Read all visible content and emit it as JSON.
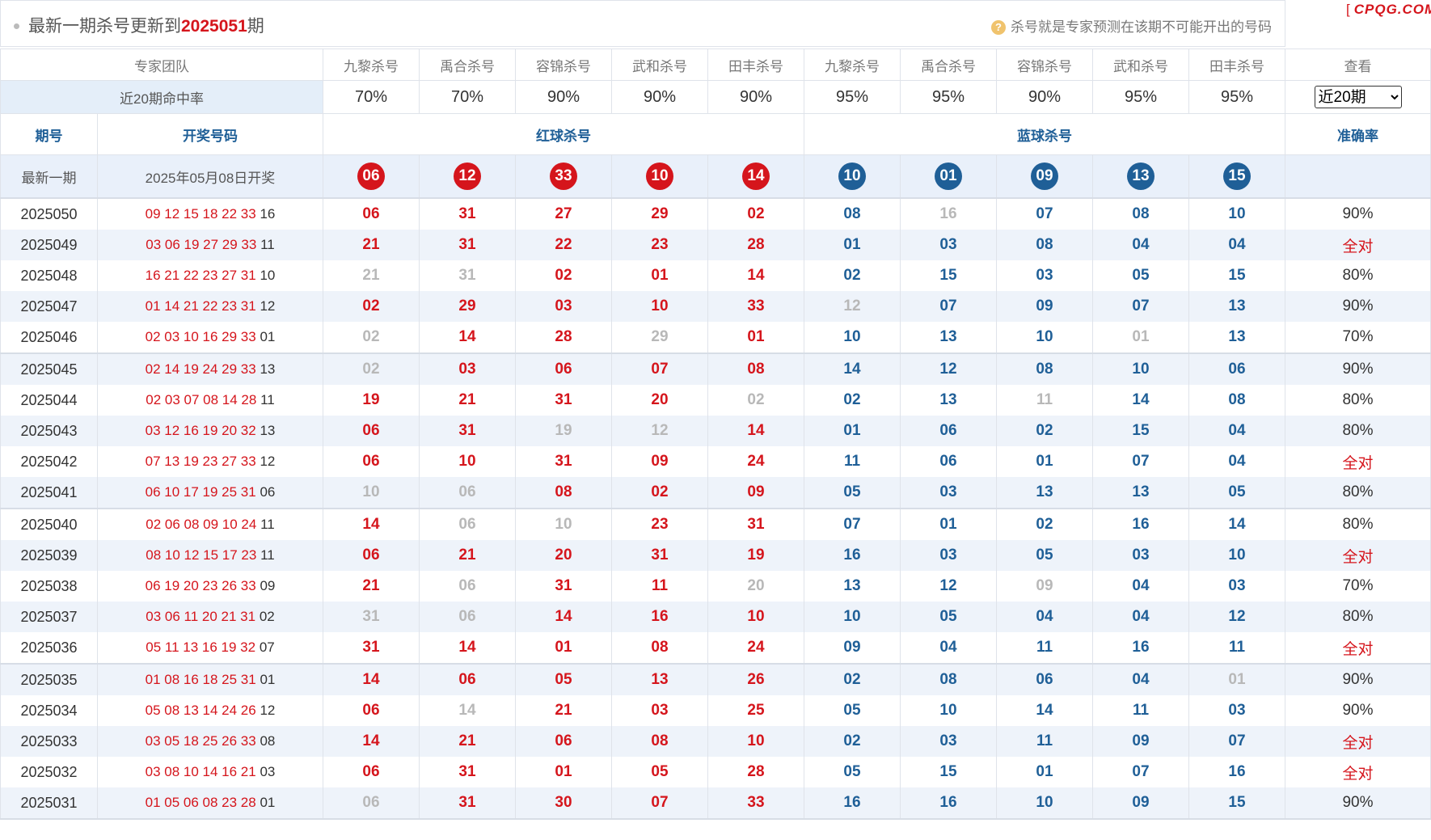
{
  "header": {
    "title_prefix": "最新一期杀号更新到",
    "title_period": "2025051",
    "title_suffix": "期",
    "tip_icon": "question-icon",
    "tip": "杀号就是专家预测在该期不可能开出的号码",
    "logo": "CPQG.COM"
  },
  "team_row": {
    "label": "专家团队",
    "experts": [
      "九黎杀号",
      "禹合杀号",
      "容锦杀号",
      "武和杀号",
      "田丰杀号",
      "九黎杀号",
      "禹合杀号",
      "容锦杀号",
      "武和杀号",
      "田丰杀号"
    ],
    "view_label": "查看"
  },
  "rate_row": {
    "label": "近20期命中率",
    "rates": [
      "70%",
      "70%",
      "90%",
      "90%",
      "90%",
      "95%",
      "95%",
      "90%",
      "95%",
      "95%"
    ],
    "select_value": "近20期"
  },
  "columns": {
    "period": "期号",
    "draw": "开奖号码",
    "red": "红球杀号",
    "blue": "蓝球杀号",
    "accuracy": "准确率"
  },
  "latest": {
    "label": "最新一期",
    "date": "2025年05月08日开奖",
    "red": [
      "06",
      "12",
      "33",
      "10",
      "14"
    ],
    "blue": [
      "10",
      "01",
      "09",
      "13",
      "15"
    ]
  },
  "rows": [
    {
      "period": "2025050",
      "draw_red": "09 12 15 18 22 33",
      "draw_blue": "16",
      "kills": [
        "06",
        "31",
        "27",
        "29",
        "02",
        "08",
        "16",
        "07",
        "08",
        "10"
      ],
      "miss": [
        6
      ],
      "accuracy": "90%"
    },
    {
      "period": "2025049",
      "draw_red": "03 06 19 27 29 33",
      "draw_blue": "11",
      "kills": [
        "21",
        "31",
        "22",
        "23",
        "28",
        "01",
        "03",
        "08",
        "04",
        "04"
      ],
      "miss": [],
      "accuracy": "全对"
    },
    {
      "period": "2025048",
      "draw_red": "16 21 22 23 27 31",
      "draw_blue": "10",
      "kills": [
        "21",
        "31",
        "02",
        "01",
        "14",
        "02",
        "15",
        "03",
        "05",
        "15"
      ],
      "miss": [
        0,
        1
      ],
      "accuracy": "80%"
    },
    {
      "period": "2025047",
      "draw_red": "01 14 21 22 23 31",
      "draw_blue": "12",
      "kills": [
        "02",
        "29",
        "03",
        "10",
        "33",
        "12",
        "07",
        "09",
        "07",
        "13"
      ],
      "miss": [
        5
      ],
      "accuracy": "90%"
    },
    {
      "period": "2025046",
      "draw_red": "02 03 10 16 29 33",
      "draw_blue": "01",
      "kills": [
        "02",
        "14",
        "28",
        "29",
        "01",
        "10",
        "13",
        "10",
        "01",
        "13"
      ],
      "miss": [
        0,
        3,
        8
      ],
      "accuracy": "70%"
    },
    {
      "period": "2025045",
      "draw_red": "02 14 19 24 29 33",
      "draw_blue": "13",
      "kills": [
        "02",
        "03",
        "06",
        "07",
        "08",
        "14",
        "12",
        "08",
        "10",
        "06"
      ],
      "miss": [
        0
      ],
      "accuracy": "90%"
    },
    {
      "period": "2025044",
      "draw_red": "02 03 07 08 14 28",
      "draw_blue": "11",
      "kills": [
        "19",
        "21",
        "31",
        "20",
        "02",
        "02",
        "13",
        "11",
        "14",
        "08"
      ],
      "miss": [
        4,
        7
      ],
      "accuracy": "80%"
    },
    {
      "period": "2025043",
      "draw_red": "03 12 16 19 20 32",
      "draw_blue": "13",
      "kills": [
        "06",
        "31",
        "19",
        "12",
        "14",
        "01",
        "06",
        "02",
        "15",
        "04"
      ],
      "miss": [
        2,
        3
      ],
      "accuracy": "80%"
    },
    {
      "period": "2025042",
      "draw_red": "07 13 19 23 27 33",
      "draw_blue": "12",
      "kills": [
        "06",
        "10",
        "31",
        "09",
        "24",
        "11",
        "06",
        "01",
        "07",
        "04"
      ],
      "miss": [],
      "accuracy": "全对"
    },
    {
      "period": "2025041",
      "draw_red": "06 10 17 19 25 31",
      "draw_blue": "06",
      "kills": [
        "10",
        "06",
        "08",
        "02",
        "09",
        "05",
        "03",
        "13",
        "13",
        "05"
      ],
      "miss": [
        0,
        1
      ],
      "accuracy": "80%"
    },
    {
      "period": "2025040",
      "draw_red": "02 06 08 09 10 24",
      "draw_blue": "11",
      "kills": [
        "14",
        "06",
        "10",
        "23",
        "31",
        "07",
        "01",
        "02",
        "16",
        "14"
      ],
      "miss": [
        1,
        2
      ],
      "accuracy": "80%"
    },
    {
      "period": "2025039",
      "draw_red": "08 10 12 15 17 23",
      "draw_blue": "11",
      "kills": [
        "06",
        "21",
        "20",
        "31",
        "19",
        "16",
        "03",
        "05",
        "03",
        "10"
      ],
      "miss": [],
      "accuracy": "全对"
    },
    {
      "period": "2025038",
      "draw_red": "06 19 20 23 26 33",
      "draw_blue": "09",
      "kills": [
        "21",
        "06",
        "31",
        "11",
        "20",
        "13",
        "12",
        "09",
        "04",
        "03"
      ],
      "miss": [
        1,
        4,
        7
      ],
      "accuracy": "70%"
    },
    {
      "period": "2025037",
      "draw_red": "03 06 11 20 21 31",
      "draw_blue": "02",
      "kills": [
        "31",
        "06",
        "14",
        "16",
        "10",
        "10",
        "05",
        "04",
        "04",
        "12"
      ],
      "miss": [
        0,
        1
      ],
      "accuracy": "80%"
    },
    {
      "period": "2025036",
      "draw_red": "05 11 13 16 19 32",
      "draw_blue": "07",
      "kills": [
        "31",
        "14",
        "01",
        "08",
        "24",
        "09",
        "04",
        "11",
        "16",
        "11"
      ],
      "miss": [],
      "accuracy": "全对"
    },
    {
      "period": "2025035",
      "draw_red": "01 08 16 18 25 31",
      "draw_blue": "01",
      "kills": [
        "14",
        "06",
        "05",
        "13",
        "26",
        "02",
        "08",
        "06",
        "04",
        "01"
      ],
      "miss": [
        9
      ],
      "accuracy": "90%"
    },
    {
      "period": "2025034",
      "draw_red": "05 08 13 14 24 26",
      "draw_blue": "12",
      "kills": [
        "06",
        "14",
        "21",
        "03",
        "25",
        "05",
        "10",
        "14",
        "11",
        "03"
      ],
      "miss": [
        1
      ],
      "accuracy": "90%"
    },
    {
      "period": "2025033",
      "draw_red": "03 05 18 25 26 33",
      "draw_blue": "08",
      "kills": [
        "14",
        "21",
        "06",
        "08",
        "10",
        "02",
        "03",
        "11",
        "09",
        "07"
      ],
      "miss": [],
      "accuracy": "全对"
    },
    {
      "period": "2025032",
      "draw_red": "03 08 10 14 16 21",
      "draw_blue": "03",
      "kills": [
        "06",
        "31",
        "01",
        "05",
        "28",
        "05",
        "15",
        "01",
        "07",
        "16"
      ],
      "miss": [],
      "accuracy": "全对"
    },
    {
      "period": "2025031",
      "draw_red": "01 05 06 08 23 28",
      "draw_blue": "01",
      "kills": [
        "06",
        "31",
        "30",
        "07",
        "33",
        "16",
        "16",
        "10",
        "09",
        "15"
      ],
      "miss": [
        0
      ],
      "accuracy": "90%"
    }
  ]
}
